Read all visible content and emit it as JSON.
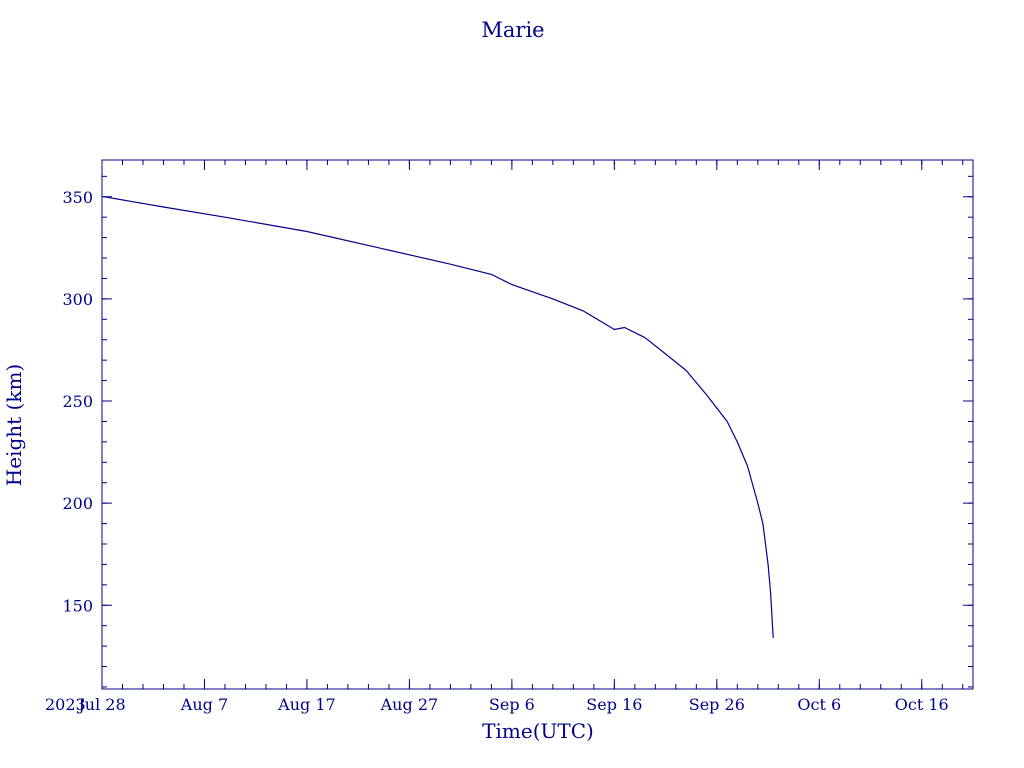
{
  "chart_data": {
    "type": "line",
    "title": "Marie",
    "xlabel": "Time(UTC)",
    "ylabel": "Height (km)",
    "year_label": "2023",
    "xlim": [
      "2023-07-28",
      "2023-10-21"
    ],
    "ylim": [
      109,
      368
    ],
    "grid": false,
    "color": "#00008b",
    "x_ticks": [
      {
        "date": "2023-07-28",
        "label": "Jul 28"
      },
      {
        "date": "2023-08-07",
        "label": "Aug  7"
      },
      {
        "date": "2023-08-17",
        "label": "Aug 17"
      },
      {
        "date": "2023-08-27",
        "label": "Aug 27"
      },
      {
        "date": "2023-09-06",
        "label": "Sep  6"
      },
      {
        "date": "2023-09-16",
        "label": "Sep 16"
      },
      {
        "date": "2023-09-26",
        "label": "Sep 26"
      },
      {
        "date": "2023-10-06",
        "label": "Oct  6"
      },
      {
        "date": "2023-10-16",
        "label": "Oct 16"
      }
    ],
    "y_ticks": [
      {
        "value": 150,
        "label": "150"
      },
      {
        "value": 200,
        "label": "200"
      },
      {
        "value": 250,
        "label": "250"
      },
      {
        "value": 300,
        "label": "300"
      },
      {
        "value": 350,
        "label": "350"
      }
    ],
    "series": [
      {
        "points": [
          {
            "x": "2023-07-28 06:00",
            "y": 350
          },
          {
            "x": "2023-08-03",
            "y": 345
          },
          {
            "x": "2023-08-09",
            "y": 340
          },
          {
            "x": "2023-08-17",
            "y": 333
          },
          {
            "x": "2023-08-24",
            "y": 325
          },
          {
            "x": "2023-08-31",
            "y": 317
          },
          {
            "x": "2023-09-04",
            "y": 312
          },
          {
            "x": "2023-09-06",
            "y": 307
          },
          {
            "x": "2023-09-10",
            "y": 300
          },
          {
            "x": "2023-09-13",
            "y": 294
          },
          {
            "x": "2023-09-16",
            "y": 285
          },
          {
            "x": "2023-09-17",
            "y": 286
          },
          {
            "x": "2023-09-19",
            "y": 281
          },
          {
            "x": "2023-09-21",
            "y": 273
          },
          {
            "x": "2023-09-23",
            "y": 265
          },
          {
            "x": "2023-09-25",
            "y": 253
          },
          {
            "x": "2023-09-27",
            "y": 240
          },
          {
            "x": "2023-09-28",
            "y": 230
          },
          {
            "x": "2023-09-29",
            "y": 218
          },
          {
            "x": "2023-09-30",
            "y": 200
          },
          {
            "x": "2023-09-30 12:00",
            "y": 190
          },
          {
            "x": "2023-10-01",
            "y": 170
          },
          {
            "x": "2023-10-01 06:00",
            "y": 156
          },
          {
            "x": "2023-10-01 12:00",
            "y": 134
          }
        ]
      }
    ]
  }
}
